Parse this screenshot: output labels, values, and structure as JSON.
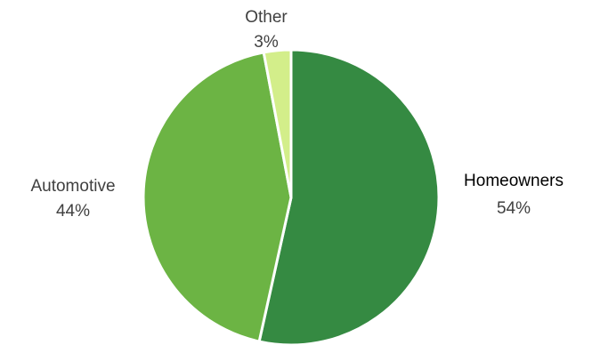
{
  "chart_data": {
    "type": "pie",
    "slices": [
      {
        "label": "Homeowners",
        "value": 54,
        "value_label": "54%",
        "color": "#358a42"
      },
      {
        "label": "Automotive",
        "value": 44,
        "value_label": "44%",
        "color": "#6cb444"
      },
      {
        "label": "Other",
        "value": 3,
        "value_label": "3%",
        "color": "#d3ee8a"
      }
    ],
    "start_angle": "12 o'clock",
    "direction": "clockwise",
    "label_color": "#404040",
    "slice_border_color": "#ffffff"
  }
}
